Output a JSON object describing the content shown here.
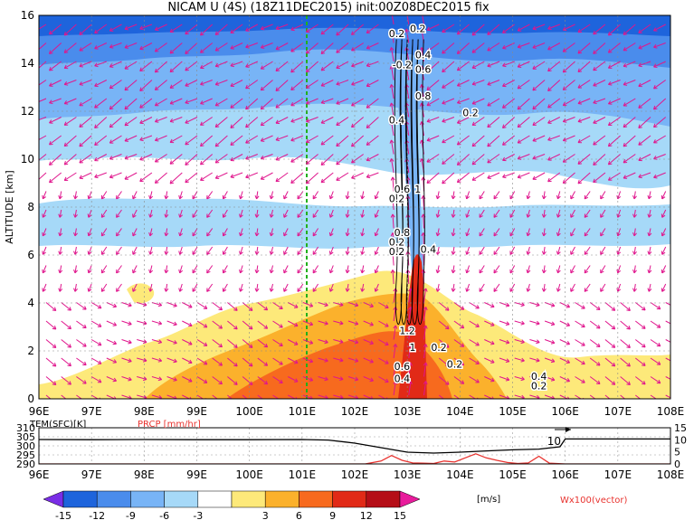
{
  "title": "NICAM U (4S) (18Z11DEC2015) init:00Z08DEC2015 fix",
  "chart_data": [
    {
      "type": "heatmap",
      "panel": "cross-section",
      "ylabel": "ALTITUDE [km]",
      "xlim": [
        96,
        108
      ],
      "ylim": [
        0,
        16
      ],
      "x_ticks": [
        "96E",
        "97E",
        "98E",
        "99E",
        "100E",
        "101E",
        "102E",
        "103E",
        "104E",
        "105E",
        "106E",
        "107E",
        "108E"
      ],
      "y_ticks": [
        "0",
        "2",
        "4",
        "6",
        "8",
        "10",
        "12",
        "14",
        "16"
      ],
      "grid": true,
      "marker_line_x": 101,
      "contour_labels": [
        {
          "text": "0.2",
          "x": 102.8,
          "y": 15.1
        },
        {
          "text": "0.2",
          "x": 103.2,
          "y": 15.3
        },
        {
          "text": "-0.2",
          "x": 102.9,
          "y": 13.8
        },
        {
          "text": "0.4",
          "x": 103.3,
          "y": 14.2
        },
        {
          "text": "0.6",
          "x": 103.3,
          "y": 13.6
        },
        {
          "text": "0.8",
          "x": 103.3,
          "y": 12.5
        },
        {
          "text": "0.4",
          "x": 102.8,
          "y": 11.5
        },
        {
          "text": "0.2",
          "x": 104.2,
          "y": 11.8
        },
        {
          "text": "0.2",
          "x": 102.8,
          "y": 8.2
        },
        {
          "text": "0.6",
          "x": 102.9,
          "y": 8.6
        },
        {
          "text": "1",
          "x": 103.2,
          "y": 8.6
        },
        {
          "text": "0.2",
          "x": 102.8,
          "y": 6.4
        },
        {
          "text": "0.8",
          "x": 102.9,
          "y": 6.8
        },
        {
          "text": "0.2",
          "x": 102.8,
          "y": 6.0
        },
        {
          "text": "0.4",
          "x": 103.4,
          "y": 6.1
        },
        {
          "text": "1.2",
          "x": 103.0,
          "y": 2.7
        },
        {
          "text": "1",
          "x": 103.1,
          "y": 2.0
        },
        {
          "text": "0.2",
          "x": 103.6,
          "y": 2.0
        },
        {
          "text": "0.6",
          "x": 102.9,
          "y": 1.2
        },
        {
          "text": "0.4",
          "x": 102.9,
          "y": 0.7
        },
        {
          "text": "0.2",
          "x": 103.9,
          "y": 1.3
        },
        {
          "text": "0.4",
          "x": 105.5,
          "y": 0.8
        },
        {
          "text": "0.2",
          "x": 105.5,
          "y": 0.4
        }
      ]
    },
    {
      "type": "line",
      "panel": "surface",
      "legend": [
        "TEM(SFC)[K]",
        "PRCP [mm/hr]"
      ],
      "xlim": [
        96,
        108
      ],
      "x_ticks": [
        "96E",
        "97E",
        "98E",
        "99E",
        "100E",
        "101E",
        "102E",
        "103E",
        "104E",
        "105E",
        "106E",
        "107E",
        "108E"
      ],
      "y_left_ticks": [
        "290",
        "295",
        "300",
        "305",
        "310"
      ],
      "y_right_ticks": [
        "0",
        "5",
        "10",
        "15"
      ],
      "y_left_range": [
        290,
        310
      ],
      "y_right_range": [
        0,
        15
      ],
      "annotation": "10",
      "series": [
        {
          "name": "TEM(SFC)[K]",
          "x": [
            96,
            97,
            98,
            99,
            100,
            101,
            101.5,
            102,
            102.5,
            102.8,
            103,
            103.5,
            104,
            104.5,
            105,
            105.5,
            105.9,
            106,
            107,
            108
          ],
          "values": [
            303.5,
            303.4,
            303.5,
            303.4,
            303.4,
            303.5,
            303.2,
            301.5,
            299,
            297.5,
            296.5,
            296,
            296.5,
            297.2,
            297.8,
            298.2,
            299.5,
            303.8,
            303.8,
            303.8
          ]
        },
        {
          "name": "PRCP [mm/hr]",
          "x": [
            96,
            102.2,
            102.5,
            102.7,
            102.9,
            103.1,
            103.3,
            103.5,
            103.7,
            103.9,
            104.1,
            104.3,
            104.5,
            104.7,
            104.9,
            105.1,
            105.3,
            105.5,
            105.7,
            106,
            108
          ],
          "values": [
            0,
            0,
            1.2,
            3.5,
            1.5,
            0.4,
            0.3,
            0.2,
            1.2,
            0.8,
            2.5,
            4.2,
            2.5,
            1.5,
            0.6,
            0.2,
            0.4,
            3.2,
            0.3,
            0,
            0
          ]
        }
      ]
    },
    {
      "type": "colorbar",
      "ticks": [
        "-15",
        "-12",
        "-9",
        "-6",
        "-3",
        "3",
        "6",
        "9",
        "12",
        "15"
      ],
      "colors": [
        "#7a2ee6",
        "#1e64dc",
        "#4a8cec",
        "#78b4f6",
        "#a6d9f8",
        "#ffffff",
        "#fde97a",
        "#fbb12c",
        "#f76a1e",
        "#e12a17",
        "#b50e17",
        "#e81b9c"
      ],
      "unit": "[m/s]",
      "vector_label": "Wx100(vector)"
    }
  ]
}
